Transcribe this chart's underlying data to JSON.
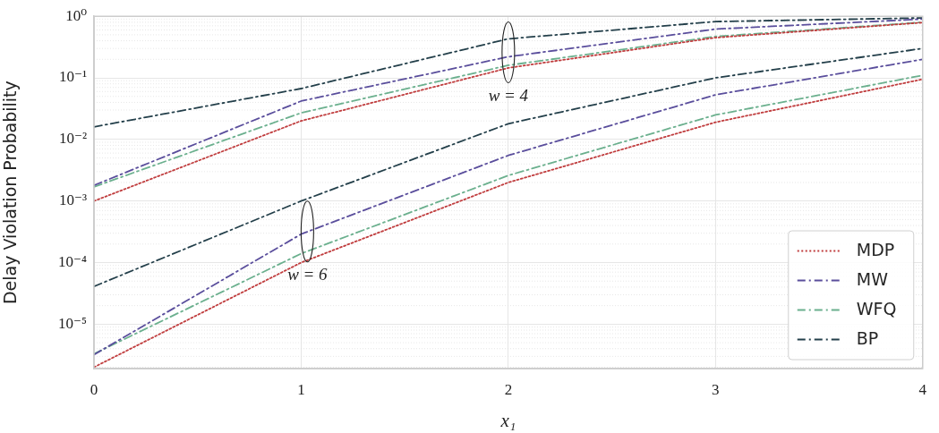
{
  "chart_data": {
    "type": "line",
    "xlabel": "x₁",
    "ylabel": "Delay Violation Probability",
    "x": [
      0,
      1,
      2,
      3,
      4
    ],
    "series": [
      {
        "name": "MDP",
        "color": "#c03d3e",
        "line_style": "dotted",
        "values": [
          0.001,
          0.02,
          0.145,
          0.45,
          0.79
        ]
      },
      {
        "name": "MW",
        "color": "#5a4e9c",
        "line_style": "dashed",
        "values": [
          0.0018,
          0.042,
          0.22,
          0.62,
          0.9
        ]
      },
      {
        "name": "WFQ",
        "color": "#6bb08e",
        "line_style": "dashed",
        "values": [
          0.0017,
          0.027,
          0.16,
          0.47,
          0.8
        ]
      },
      {
        "name": "BP",
        "color": "#233f4a",
        "line_style": "dashed",
        "values": [
          0.016,
          0.067,
          0.43,
          0.82,
          0.94
        ]
      },
      {
        "color": "#c03d3e",
        "line_style": "dotted",
        "values": [
          2e-06,
          0.0001,
          0.002,
          0.019,
          0.095
        ]
      },
      {
        "color": "#5a4e9c",
        "line_style": "dashed",
        "values": [
          3.2e-06,
          0.00029,
          0.0055,
          0.053,
          0.2
        ]
      },
      {
        "color": "#6bb08e",
        "line_style": "dashed",
        "values": [
          3.3e-06,
          0.00014,
          0.0026,
          0.025,
          0.11
        ]
      },
      {
        "color": "#233f4a",
        "line_style": "dashed",
        "values": [
          4.1e-05,
          0.001,
          0.018,
          0.1,
          0.3
        ]
      }
    ],
    "xlim": [
      0,
      4
    ],
    "xticks": [
      0,
      1,
      2,
      3,
      4
    ],
    "log": "y",
    "ylim": [
      1.9e-06,
      1
    ],
    "yticks": [
      {
        "value": 1e-05,
        "label": "10⁻⁵"
      },
      {
        "value": 0.0001,
        "label": "10⁻⁴"
      },
      {
        "value": 0.001,
        "label": "10⁻³"
      },
      {
        "value": 0.01,
        "label": "10⁻²"
      },
      {
        "value": 0.1,
        "label": "10⁻¹"
      },
      {
        "value": 1,
        "label": "10⁰"
      }
    ],
    "annotations": [
      {
        "text": "w = 4",
        "x": 2,
        "y": 0.26
      },
      {
        "text": "w = 6",
        "x": 1.03,
        "y": 0.00032
      }
    ],
    "grid": true,
    "legend": "bottom right"
  }
}
